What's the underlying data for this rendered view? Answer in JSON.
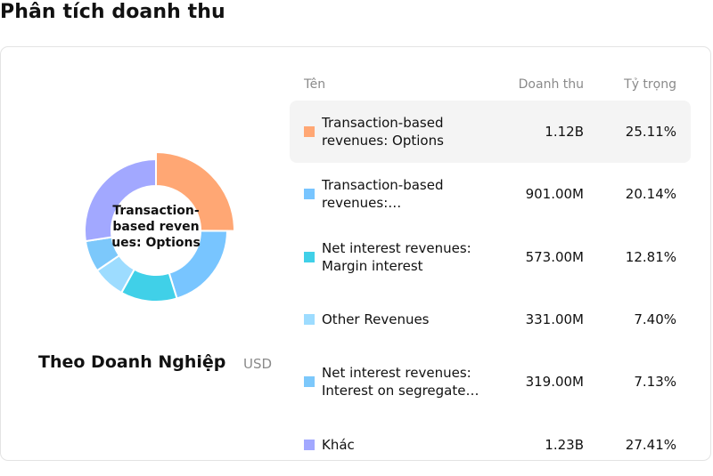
{
  "title": "Phân tích doanh thu",
  "subtitle": "Theo Doanh Nghiệp",
  "currency": "USD",
  "table_headers": {
    "name": "Tên",
    "revenue": "Doanh thu",
    "share": "Tỷ trọng"
  },
  "chart_data": {
    "type": "pie",
    "donut": true,
    "center_label": "Transaction-based revenues: Options",
    "legend": "right",
    "series": [
      {
        "name": "Transaction-based revenues: Options",
        "value": 1.12,
        "value_label": "1.12B",
        "share": 25.11,
        "share_label": "25.11%",
        "color": "#ffa774"
      },
      {
        "name": "Transaction-based revenues:…",
        "value": 0.901,
        "value_label": "901.00M",
        "share": 20.14,
        "share_label": "20.14%",
        "color": "#78c5ff"
      },
      {
        "name": "Net interest revenues: Margin interest",
        "value": 0.573,
        "value_label": "573.00M",
        "share": 12.81,
        "share_label": "12.81%",
        "color": "#40d0e8"
      },
      {
        "name": "Other Revenues",
        "value": 0.331,
        "value_label": "331.00M",
        "share": 7.4,
        "share_label": "7.40%",
        "color": "#9ddcff"
      },
      {
        "name": "Net interest revenues: Interest on segregate…",
        "value": 0.319,
        "value_label": "319.00M",
        "share": 7.13,
        "share_label": "7.13%",
        "color": "#7cc8fb"
      },
      {
        "name": "Khác",
        "value": 1.23,
        "value_label": "1.23B",
        "share": 27.41,
        "share_label": "27.41%",
        "color": "#a2a8ff"
      }
    ]
  }
}
